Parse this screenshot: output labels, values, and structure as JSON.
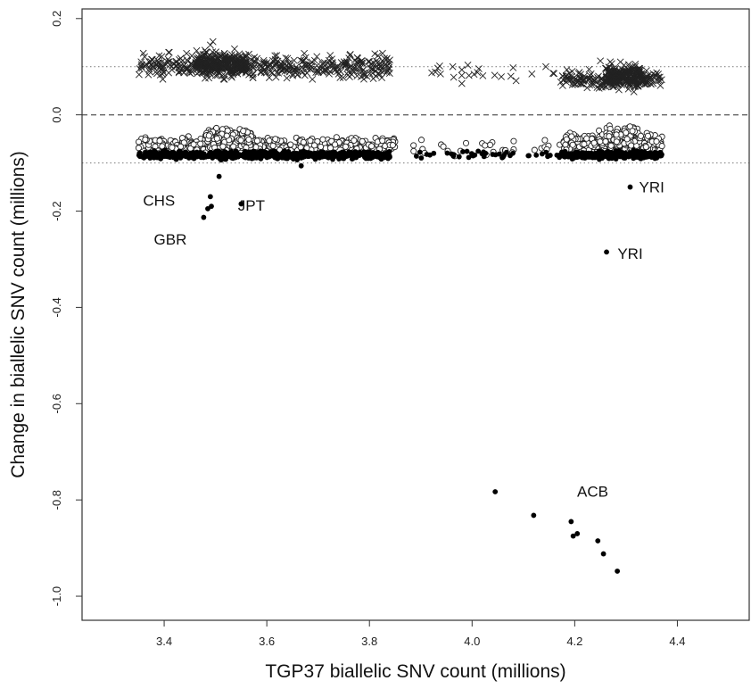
{
  "chart_data": {
    "type": "scatter",
    "title": "",
    "xlabel": "TGP37 biallelic SNV count (millions)",
    "ylabel": "Change in biallelic SNV count (millions)",
    "xlim": [
      3.24,
      4.54
    ],
    "ylim": [
      -1.05,
      0.22
    ],
    "xticks": [
      "3.4",
      "3.6",
      "3.8",
      "4.0",
      "4.2",
      "4.4"
    ],
    "yticks": [
      "0.2",
      "0.0",
      "-0.2",
      "-0.4",
      "-0.6",
      "-0.8",
      "-1.0"
    ],
    "grid": false,
    "reference_lines": [
      {
        "y": 0.1,
        "style": "dotted",
        "color": "#888888"
      },
      {
        "y": 0.0,
        "style": "dashed",
        "color": "#666666"
      },
      {
        "y": -0.1,
        "style": "dotted",
        "color": "#888888"
      }
    ],
    "series": [
      {
        "marker": "x",
        "clusters": [
          {
            "x": [
              3.35,
              3.84
            ],
            "y": [
              0.065,
              0.135
            ],
            "n": 420
          },
          {
            "x": [
              3.46,
              3.56
            ],
            "y": [
              0.075,
              0.14
            ],
            "n": 260
          },
          {
            "x": [
              3.89,
              4.16
            ],
            "y": [
              0.065,
              0.11
            ],
            "n": 24
          },
          {
            "x": [
              4.17,
              4.37
            ],
            "y": [
              0.05,
              0.1
            ],
            "n": 160
          },
          {
            "x": [
              4.26,
              4.33
            ],
            "y": [
              0.045,
              0.115
            ],
            "n": 200
          }
        ],
        "points": [
          {
            "x": 3.495,
            "y": 0.152
          },
          {
            "x": 3.49,
            "y": 0.145
          },
          {
            "x": 4.25,
            "y": 0.112
          },
          {
            "x": 3.98,
            "y": 0.065
          }
        ]
      },
      {
        "marker": "open-circle",
        "clusters": [
          {
            "x": [
              3.35,
              3.85
            ],
            "y": [
              -0.085,
              -0.04
            ],
            "n": 420
          },
          {
            "x": [
              3.48,
              3.57
            ],
            "y": [
              -0.085,
              -0.02
            ],
            "n": 160
          },
          {
            "x": [
              3.88,
              4.17
            ],
            "y": [
              -0.095,
              -0.04
            ],
            "n": 30
          },
          {
            "x": [
              4.17,
              4.37
            ],
            "y": [
              -0.09,
              -0.03
            ],
            "n": 260
          },
          {
            "x": [
              4.26,
              4.33
            ],
            "y": [
              -0.07,
              -0.015
            ],
            "n": 80
          }
        ],
        "points": []
      },
      {
        "marker": "filled-circle",
        "clusters": [
          {
            "x": [
              3.35,
              3.84
            ],
            "y": [
              -0.095,
              -0.072
            ],
            "n": 600
          },
          {
            "x": [
              3.89,
              4.17
            ],
            "y": [
              -0.095,
              -0.072
            ],
            "n": 40
          },
          {
            "x": [
              4.17,
              4.37
            ],
            "y": [
              -0.095,
              -0.072
            ],
            "n": 300
          }
        ],
        "points": [
          {
            "x": 3.667,
            "y": -0.106
          },
          {
            "x": 3.507,
            "y": -0.128
          },
          {
            "x": 3.49,
            "y": -0.17
          },
          {
            "x": 3.485,
            "y": -0.195
          },
          {
            "x": 3.492,
            "y": -0.19
          },
          {
            "x": 3.477,
            "y": -0.213
          },
          {
            "x": 3.55,
            "y": -0.185
          },
          {
            "x": 4.308,
            "y": -0.15
          },
          {
            "x": 4.262,
            "y": -0.285
          },
          {
            "x": 4.045,
            "y": -0.783
          },
          {
            "x": 4.12,
            "y": -0.832
          },
          {
            "x": 4.193,
            "y": -0.845
          },
          {
            "x": 4.197,
            "y": -0.875
          },
          {
            "x": 4.205,
            "y": -0.87
          },
          {
            "x": 4.245,
            "y": -0.885
          },
          {
            "x": 4.256,
            "y": -0.912
          },
          {
            "x": 4.283,
            "y": -0.948
          }
        ]
      }
    ],
    "annotations": [
      {
        "label": "CHS",
        "x": 3.39,
        "y": -0.178
      },
      {
        "label": "GBR",
        "x": 3.412,
        "y": -0.258
      },
      {
        "label": "JPT",
        "x": 3.57,
        "y": -0.188
      },
      {
        "label": "YRI",
        "x": 4.35,
        "y": -0.15
      },
      {
        "label": "YRI",
        "x": 4.308,
        "y": -0.288
      },
      {
        "label": "ACB",
        "x": 4.235,
        "y": -0.782
      }
    ]
  }
}
